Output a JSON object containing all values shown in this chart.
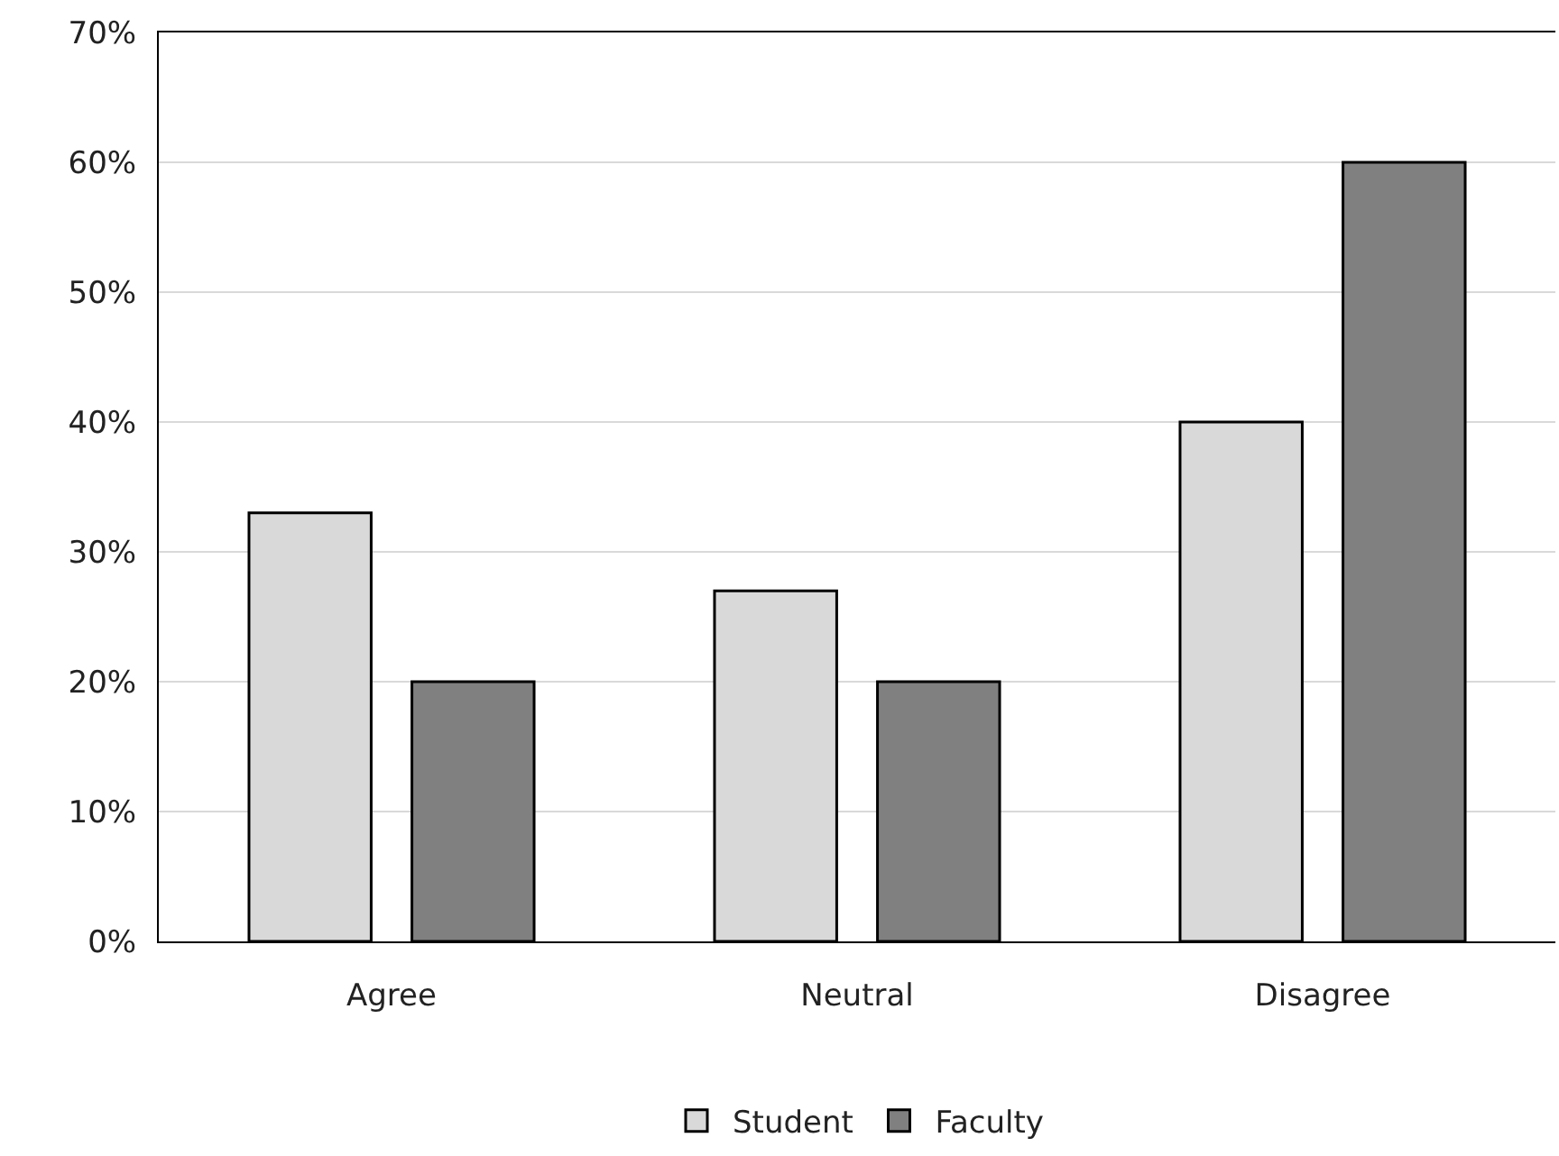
{
  "chart_data": {
    "type": "bar",
    "categories": [
      "Agree",
      "Neutral",
      "Disagree"
    ],
    "series": [
      {
        "name": "Student",
        "color": "#d9d9d9",
        "values": [
          33,
          27,
          40
        ]
      },
      {
        "name": "Faculty",
        "color": "#808080",
        "values": [
          20,
          20,
          60
        ]
      }
    ],
    "ylim": [
      0,
      70
    ],
    "yticks": [
      {
        "value": 0,
        "label": "0%"
      },
      {
        "value": 10,
        "label": "10%"
      },
      {
        "value": 20,
        "label": "20%"
      },
      {
        "value": 30,
        "label": "30%"
      },
      {
        "value": 40,
        "label": "40%"
      },
      {
        "value": 50,
        "label": "50%"
      },
      {
        "value": 60,
        "label": "60%"
      },
      {
        "value": 70,
        "label": "70%"
      }
    ],
    "grid": "y",
    "legend": "bottom"
  }
}
